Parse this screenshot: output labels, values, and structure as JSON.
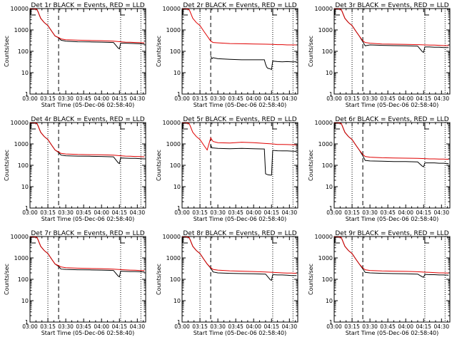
{
  "figure": {
    "start_time_label": "Start Time (05-Dec-06 02:58:40)",
    "ylabel": "Counts/sec",
    "x_ticks": [
      "03:00",
      "03:15",
      "03:30",
      "03:45",
      "04:00",
      "04:15",
      "04:30"
    ],
    "y_ticks": [
      "1",
      "10",
      "100",
      "1000",
      "10000"
    ],
    "colors": {
      "events": "#000000",
      "lld": "#e00000",
      "frame": "#000000"
    }
  },
  "chart_data": [
    {
      "type": "line",
      "title": "Det 1r BLACK = Events, RED = LLD",
      "x_unit": "minutes after 03:00",
      "xlim": [
        0,
        97
      ],
      "ylim": [
        1,
        10000
      ],
      "y_scale": "log",
      "dashed_vline_x": 24,
      "dotted_vlines_x": [
        15,
        76,
        93
      ],
      "series": [
        {
          "name": "Events",
          "color": "#000000",
          "x": [
            0,
            3,
            6,
            9,
            12,
            15,
            18,
            21,
            24,
            26,
            30,
            40,
            50,
            60,
            70,
            74,
            75,
            76,
            80,
            84,
            88,
            92,
            96
          ],
          "y": [
            10000,
            10000,
            9000,
            3500,
            2200,
            1600,
            900,
            520,
            430,
            330,
            300,
            280,
            275,
            270,
            260,
            140,
            130,
            240,
            240,
            235,
            230,
            225,
            220
          ]
        },
        {
          "name": "LLD",
          "color": "#e00000",
          "x": [
            0,
            3,
            6,
            9,
            12,
            15,
            18,
            21,
            24,
            26,
            30,
            40,
            50,
            60,
            70,
            76,
            80,
            84,
            88,
            92,
            96
          ],
          "y": [
            10000,
            10000,
            9000,
            3500,
            2200,
            1600,
            900,
            520,
            440,
            380,
            350,
            330,
            320,
            315,
            300,
            280,
            270,
            265,
            260,
            255,
            250
          ]
        }
      ]
    },
    {
      "type": "line",
      "title": "Det 2r BLACK = Events, RED = LLD",
      "x_unit": "minutes after 03:00",
      "xlim": [
        0,
        97
      ],
      "ylim": [
        1,
        10000
      ],
      "y_scale": "log",
      "dashed_vline_x": 24,
      "dotted_vlines_x": [
        15,
        76,
        93
      ],
      "series": [
        {
          "name": "Events",
          "color": "#000000",
          "x": [
            24,
            25,
            26,
            30,
            40,
            50,
            60,
            69,
            70,
            71,
            72,
            74,
            75,
            76,
            80,
            84,
            88,
            92,
            96
          ],
          "y": [
            60,
            45,
            50,
            45,
            42,
            40,
            40,
            40,
            25,
            18,
            16,
            15,
            14,
            35,
            33,
            32,
            33,
            32,
            32
          ]
        },
        {
          "name": "LLD",
          "color": "#e00000",
          "x": [
            0,
            3,
            6,
            9,
            12,
            15,
            18,
            21,
            24,
            26,
            30,
            40,
            50,
            60,
            70,
            76,
            80,
            84,
            88,
            92,
            96
          ],
          "y": [
            10000,
            10000,
            9000,
            3500,
            2200,
            1600,
            900,
            520,
            300,
            260,
            250,
            230,
            225,
            220,
            215,
            210,
            205,
            205,
            200,
            200,
            200
          ]
        }
      ]
    },
    {
      "type": "line",
      "title": "Det 3r BLACK = Events, RED = LLD",
      "x_unit": "minutes after 03:00",
      "xlim": [
        0,
        97
      ],
      "ylim": [
        1,
        10000
      ],
      "y_scale": "log",
      "dashed_vline_x": 24,
      "dotted_vlines_x": [
        15,
        76,
        93
      ],
      "series": [
        {
          "name": "Events",
          "color": "#000000",
          "x": [
            0,
            3,
            6,
            9,
            12,
            15,
            18,
            21,
            24,
            26,
            30,
            40,
            50,
            60,
            70,
            74,
            75,
            76,
            80,
            84,
            88,
            92,
            96
          ],
          "y": [
            10000,
            10000,
            9000,
            3500,
            2200,
            1600,
            900,
            520,
            280,
            180,
            200,
            190,
            185,
            180,
            175,
            95,
            90,
            160,
            160,
            155,
            155,
            150,
            150
          ]
        },
        {
          "name": "LLD",
          "color": "#e00000",
          "x": [
            0,
            3,
            6,
            9,
            12,
            15,
            18,
            21,
            24,
            26,
            30,
            40,
            50,
            60,
            70,
            76,
            80,
            84,
            88,
            92,
            96
          ],
          "y": [
            10000,
            10000,
            9000,
            3500,
            2200,
            1600,
            900,
            520,
            310,
            260,
            240,
            220,
            215,
            210,
            205,
            200,
            195,
            195,
            190,
            185,
            185
          ]
        }
      ]
    },
    {
      "type": "line",
      "title": "Det 4r BLACK = Events, RED = LLD",
      "x_unit": "minutes after 03:00",
      "xlim": [
        0,
        97
      ],
      "ylim": [
        1,
        10000
      ],
      "y_scale": "log",
      "dashed_vline_x": 24,
      "dotted_vlines_x": [
        15,
        76,
        93
      ],
      "series": [
        {
          "name": "Events",
          "color": "#000000",
          "x": [
            0,
            3,
            6,
            9,
            12,
            15,
            18,
            21,
            24,
            26,
            30,
            40,
            50,
            60,
            70,
            74,
            75,
            76,
            80,
            84,
            88,
            92,
            96
          ],
          "y": [
            10000,
            10000,
            9000,
            3500,
            2200,
            1600,
            900,
            520,
            400,
            300,
            280,
            270,
            265,
            260,
            250,
            130,
            120,
            220,
            215,
            210,
            210,
            205,
            200
          ]
        },
        {
          "name": "LLD",
          "color": "#e00000",
          "x": [
            0,
            3,
            6,
            9,
            12,
            15,
            18,
            21,
            24,
            26,
            30,
            40,
            50,
            60,
            70,
            76,
            80,
            84,
            88,
            92,
            96
          ],
          "y": [
            10000,
            10000,
            9000,
            3500,
            2200,
            1600,
            900,
            520,
            420,
            360,
            340,
            320,
            315,
            310,
            300,
            280,
            270,
            265,
            260,
            255,
            250
          ]
        }
      ]
    },
    {
      "type": "line",
      "title": "Det 5r BLACK = Events, RED = LLD",
      "x_unit": "minutes after 03:00",
      "xlim": [
        0,
        97
      ],
      "ylim": [
        1,
        10000
      ],
      "y_scale": "log",
      "dashed_vline_x": 24,
      "dotted_vlines_x": [
        15,
        76,
        93
      ],
      "series": [
        {
          "name": "Events",
          "color": "#000000",
          "x": [
            24,
            25,
            26,
            30,
            40,
            50,
            60,
            69,
            70,
            72,
            74,
            75,
            76,
            80,
            84,
            88,
            92,
            96
          ],
          "y": [
            900,
            650,
            650,
            620,
            600,
            620,
            600,
            580,
            40,
            36,
            35,
            35,
            500,
            480,
            470,
            470,
            460,
            450
          ]
        },
        {
          "name": "LLD",
          "color": "#e00000",
          "x": [
            0,
            3,
            6,
            9,
            12,
            15,
            18,
            21,
            24,
            26,
            30,
            40,
            50,
            60,
            70,
            76,
            80,
            84,
            88,
            92,
            96
          ],
          "y": [
            10000,
            10000,
            9000,
            3500,
            2200,
            1600,
            900,
            520,
            1900,
            1300,
            1150,
            1100,
            1200,
            1150,
            1050,
            1000,
            950,
            950,
            930,
            920,
            900
          ]
        }
      ]
    },
    {
      "type": "line",
      "title": "Det 6r BLACK = Events, RED = LLD",
      "x_unit": "minutes after 03:00",
      "xlim": [
        0,
        97
      ],
      "ylim": [
        1,
        10000
      ],
      "y_scale": "log",
      "dashed_vline_x": 24,
      "dotted_vlines_x": [
        15,
        76,
        93
      ],
      "series": [
        {
          "name": "Events",
          "color": "#000000",
          "x": [
            0,
            3,
            6,
            9,
            12,
            15,
            18,
            21,
            24,
            26,
            30,
            40,
            50,
            60,
            70,
            74,
            75,
            76,
            80,
            84,
            88,
            92,
            96
          ],
          "y": [
            10000,
            10000,
            9000,
            3500,
            2200,
            1600,
            900,
            520,
            280,
            170,
            160,
            155,
            150,
            150,
            145,
            90,
            85,
            130,
            130,
            130,
            125,
            125,
            120
          ]
        },
        {
          "name": "LLD",
          "color": "#e00000",
          "x": [
            0,
            3,
            6,
            9,
            12,
            15,
            18,
            21,
            24,
            26,
            30,
            40,
            50,
            60,
            70,
            76,
            80,
            84,
            88,
            92,
            96
          ],
          "y": [
            10000,
            10000,
            9000,
            3500,
            2200,
            1600,
            900,
            520,
            320,
            260,
            240,
            225,
            220,
            215,
            210,
            205,
            200,
            200,
            195,
            195,
            190
          ]
        }
      ]
    },
    {
      "type": "line",
      "title": "Det 7r BLACK = Events, RED = LLD",
      "x_unit": "minutes after 03:00",
      "xlim": [
        0,
        97
      ],
      "ylim": [
        1,
        10000
      ],
      "y_scale": "log",
      "dashed_vline_x": 24,
      "dotted_vlines_x": [
        15,
        76,
        93
      ],
      "series": [
        {
          "name": "Events",
          "color": "#000000",
          "x": [
            0,
            3,
            6,
            9,
            12,
            15,
            18,
            21,
            24,
            26,
            30,
            40,
            50,
            60,
            70,
            74,
            75,
            76,
            80,
            84,
            88,
            92,
            96
          ],
          "y": [
            10000,
            10000,
            9000,
            3500,
            2200,
            1600,
            900,
            520,
            400,
            300,
            290,
            280,
            275,
            270,
            260,
            140,
            130,
            240,
            235,
            230,
            230,
            225,
            220
          ]
        },
        {
          "name": "LLD",
          "color": "#e00000",
          "x": [
            0,
            3,
            6,
            9,
            12,
            15,
            18,
            21,
            24,
            26,
            30,
            40,
            50,
            60,
            70,
            76,
            80,
            84,
            88,
            92,
            96
          ],
          "y": [
            10000,
            10000,
            9000,
            3500,
            2200,
            1600,
            900,
            520,
            430,
            380,
            350,
            330,
            320,
            315,
            300,
            285,
            275,
            270,
            265,
            260,
            255
          ]
        }
      ]
    },
    {
      "type": "line",
      "title": "Det 8r BLACK = Events, RED = LLD",
      "x_unit": "minutes after 03:00",
      "xlim": [
        0,
        97
      ],
      "ylim": [
        1,
        10000
      ],
      "y_scale": "log",
      "dashed_vline_x": 24,
      "dotted_vlines_x": [
        15,
        76,
        93
      ],
      "series": [
        {
          "name": "Events",
          "color": "#000000",
          "x": [
            0,
            3,
            6,
            9,
            12,
            15,
            18,
            21,
            24,
            26,
            30,
            40,
            50,
            60,
            70,
            74,
            75,
            76,
            80,
            84,
            88,
            92,
            96
          ],
          "y": [
            10000,
            10000,
            9000,
            3500,
            2200,
            1600,
            900,
            520,
            330,
            220,
            200,
            190,
            185,
            180,
            175,
            95,
            90,
            165,
            160,
            160,
            155,
            150,
            150
          ]
        },
        {
          "name": "LLD",
          "color": "#e00000",
          "x": [
            0,
            3,
            6,
            9,
            12,
            15,
            18,
            21,
            24,
            26,
            30,
            40,
            50,
            60,
            70,
            76,
            80,
            84,
            88,
            92,
            96
          ],
          "y": [
            10000,
            10000,
            9000,
            3500,
            2200,
            1600,
            900,
            520,
            350,
            290,
            270,
            250,
            240,
            230,
            220,
            210,
            205,
            200,
            195,
            195,
            190
          ]
        }
      ]
    },
    {
      "type": "line",
      "title": "Det 9r BLACK = Events, RED = LLD",
      "x_unit": "minutes after 03:00",
      "xlim": [
        0,
        97
      ],
      "ylim": [
        1,
        10000
      ],
      "y_scale": "log",
      "dashed_vline_x": 24,
      "dotted_vlines_x": [
        15,
        76,
        93
      ],
      "series": [
        {
          "name": "Events",
          "color": "#000000",
          "x": [
            0,
            3,
            6,
            9,
            12,
            15,
            18,
            21,
            24,
            26,
            30,
            40,
            50,
            60,
            70,
            74,
            75,
            76,
            80,
            84,
            88,
            92,
            96
          ],
          "y": [
            10000,
            10000,
            9000,
            3500,
            2200,
            1600,
            900,
            520,
            310,
            210,
            200,
            190,
            185,
            180,
            175,
            130,
            125,
            170,
            165,
            165,
            160,
            160,
            155
          ]
        },
        {
          "name": "LLD",
          "color": "#e00000",
          "x": [
            0,
            3,
            6,
            9,
            12,
            15,
            18,
            21,
            24,
            26,
            30,
            40,
            50,
            60,
            70,
            76,
            80,
            84,
            88,
            92,
            96
          ],
          "y": [
            10000,
            10000,
            9000,
            3500,
            2200,
            1600,
            900,
            520,
            340,
            280,
            260,
            245,
            240,
            235,
            225,
            215,
            210,
            205,
            200,
            200,
            195
          ]
        }
      ]
    }
  ]
}
